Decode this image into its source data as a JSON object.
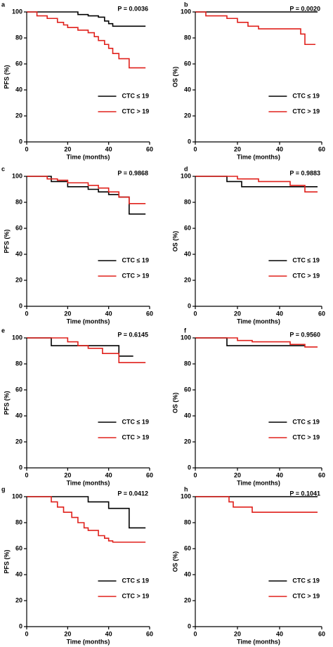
{
  "chart_data": [
    {
      "type": "line",
      "step": true,
      "panel_label": "a",
      "annotation": "P = 0.0036",
      "ylabel": "PFS (%)",
      "xlabel": "Time (months)",
      "xlim": [
        0,
        60
      ],
      "xticks": [
        0,
        20,
        40,
        60
      ],
      "ylim": [
        0,
        100
      ],
      "yticks": [
        0,
        20,
        40,
        60,
        80,
        100
      ],
      "legend": "lower right",
      "series": [
        {
          "name": "CTC ≤ 19",
          "color": "#000000",
          "x": [
            0,
            25,
            30,
            35,
            38,
            40,
            42,
            58
          ],
          "values": [
            100,
            98,
            97,
            96,
            93,
            91,
            89,
            89
          ]
        },
        {
          "name": "CTC > 19",
          "color": "#e0201b",
          "x": [
            0,
            5,
            10,
            15,
            18,
            20,
            25,
            30,
            33,
            35,
            38,
            40,
            42,
            45,
            50,
            58
          ],
          "values": [
            100,
            97,
            95,
            92,
            90,
            88,
            86,
            84,
            81,
            78,
            75,
            72,
            68,
            64,
            57,
            57
          ]
        }
      ]
    },
    {
      "type": "line",
      "step": true,
      "panel_label": "b",
      "annotation": "P = 0.0020",
      "ylabel": "OS (%)",
      "xlabel": "Time (months)",
      "xlim": [
        0,
        60
      ],
      "xticks": [
        0,
        20,
        40,
        60
      ],
      "ylim": [
        0,
        100
      ],
      "yticks": [
        0,
        20,
        40,
        60,
        80,
        100
      ],
      "legend": "lower right",
      "series": [
        {
          "name": "CTC ≤ 19",
          "color": "#000000",
          "x": [
            0,
            58
          ],
          "values": [
            100,
            100
          ]
        },
        {
          "name": "CTC > 19",
          "color": "#e0201b",
          "x": [
            0,
            5,
            15,
            20,
            25,
            30,
            50,
            52,
            57
          ],
          "values": [
            100,
            97,
            95,
            92,
            89,
            87,
            83,
            75,
            75
          ]
        }
      ]
    },
    {
      "type": "line",
      "step": true,
      "panel_label": "c",
      "annotation": "P = 0.9868",
      "ylabel": "PFS (%)",
      "xlabel": "Time (months)",
      "xlim": [
        0,
        60
      ],
      "xticks": [
        0,
        20,
        40,
        60
      ],
      "ylim": [
        0,
        100
      ],
      "yticks": [
        0,
        20,
        40,
        60,
        80,
        100
      ],
      "legend": "lower right",
      "series": [
        {
          "name": "CTC ≤ 19",
          "color": "#000000",
          "x": [
            0,
            12,
            20,
            30,
            35,
            40,
            45,
            50,
            58
          ],
          "values": [
            100,
            96,
            92,
            90,
            88,
            86,
            84,
            71,
            71
          ]
        },
        {
          "name": "CTC > 19",
          "color": "#e0201b",
          "x": [
            0,
            10,
            15,
            20,
            30,
            35,
            40,
            45,
            50,
            58
          ],
          "values": [
            100,
            98,
            97,
            95,
            93,
            91,
            88,
            84,
            79,
            79
          ]
        }
      ]
    },
    {
      "type": "line",
      "step": true,
      "panel_label": "d",
      "annotation": "P = 0.9883",
      "ylabel": "OS (%)",
      "xlabel": "Time (months)",
      "xlim": [
        0,
        60
      ],
      "xticks": [
        0,
        20,
        40,
        60
      ],
      "ylim": [
        0,
        100
      ],
      "yticks": [
        0,
        20,
        40,
        60,
        80,
        100
      ],
      "legend": "lower right",
      "series": [
        {
          "name": "CTC ≤ 19",
          "color": "#000000",
          "x": [
            0,
            15,
            22,
            58
          ],
          "values": [
            100,
            96,
            92,
            92
          ]
        },
        {
          "name": "CTC > 19",
          "color": "#e0201b",
          "x": [
            0,
            20,
            30,
            45,
            52,
            58
          ],
          "values": [
            100,
            98,
            96,
            93,
            88,
            88
          ]
        }
      ]
    },
    {
      "type": "line",
      "step": true,
      "panel_label": "e",
      "annotation": "P = 0.6145",
      "ylabel": "PFS (%)",
      "xlabel": "Time (months)",
      "xlim": [
        0,
        60
      ],
      "xticks": [
        0,
        20,
        40,
        60
      ],
      "ylim": [
        0,
        100
      ],
      "yticks": [
        0,
        20,
        40,
        60,
        80,
        100
      ],
      "legend": "lower right",
      "series": [
        {
          "name": "CTC ≤ 19",
          "color": "#000000",
          "x": [
            0,
            12,
            45,
            52
          ],
          "values": [
            100,
            94,
            86,
            86
          ]
        },
        {
          "name": "CTC > 19",
          "color": "#e0201b",
          "x": [
            0,
            20,
            25,
            30,
            37,
            45,
            58
          ],
          "values": [
            100,
            97,
            94,
            92,
            88,
            81,
            81
          ]
        }
      ]
    },
    {
      "type": "line",
      "step": true,
      "panel_label": "f",
      "annotation": "P = 0.9560",
      "ylabel": "OS (%)",
      "xlabel": "Time (months)",
      "xlim": [
        0,
        60
      ],
      "xticks": [
        0,
        20,
        40,
        60
      ],
      "ylim": [
        0,
        100
      ],
      "yticks": [
        0,
        20,
        40,
        60,
        80,
        100
      ],
      "legend": "lower right",
      "series": [
        {
          "name": "CTC ≤ 19",
          "color": "#000000",
          "x": [
            0,
            15,
            52
          ],
          "values": [
            100,
            94,
            94
          ]
        },
        {
          "name": "CTC > 19",
          "color": "#e0201b",
          "x": [
            0,
            20,
            27,
            45,
            52,
            58
          ],
          "values": [
            100,
            98,
            97,
            95,
            93,
            93
          ]
        }
      ]
    },
    {
      "type": "line",
      "step": true,
      "panel_label": "g",
      "annotation": "P = 0.0412",
      "ylabel": "PFS (%)",
      "xlabel": "Time (months)",
      "xlim": [
        0,
        60
      ],
      "xticks": [
        0,
        20,
        40,
        60
      ],
      "ylim": [
        0,
        100
      ],
      "yticks": [
        0,
        20,
        40,
        60,
        80,
        100
      ],
      "legend": "lower right",
      "series": [
        {
          "name": "CTC ≤ 19",
          "color": "#000000",
          "x": [
            0,
            30,
            40,
            50,
            58
          ],
          "values": [
            100,
            96,
            91,
            76,
            76
          ]
        },
        {
          "name": "CTC > 19",
          "color": "#e0201b",
          "x": [
            0,
            12,
            15,
            18,
            22,
            25,
            28,
            30,
            35,
            38,
            40,
            42,
            58
          ],
          "values": [
            100,
            96,
            92,
            88,
            84,
            80,
            76,
            74,
            70,
            68,
            66,
            65,
            65
          ]
        }
      ]
    },
    {
      "type": "line",
      "step": true,
      "panel_label": "h",
      "annotation": "P = 0.1041",
      "ylabel": "OS (%)",
      "xlabel": "Time (months)",
      "xlim": [
        0,
        60
      ],
      "xticks": [
        0,
        20,
        40,
        60
      ],
      "ylim": [
        0,
        100
      ],
      "yticks": [
        0,
        20,
        40,
        60,
        80,
        100
      ],
      "legend": "lower right",
      "series": [
        {
          "name": "CTC ≤ 19",
          "color": "#000000",
          "x": [
            0,
            58
          ],
          "values": [
            100,
            100
          ]
        },
        {
          "name": "CTC > 19",
          "color": "#e0201b",
          "x": [
            0,
            16,
            18,
            27,
            58
          ],
          "values": [
            100,
            96,
            92,
            88,
            88
          ]
        }
      ]
    }
  ]
}
